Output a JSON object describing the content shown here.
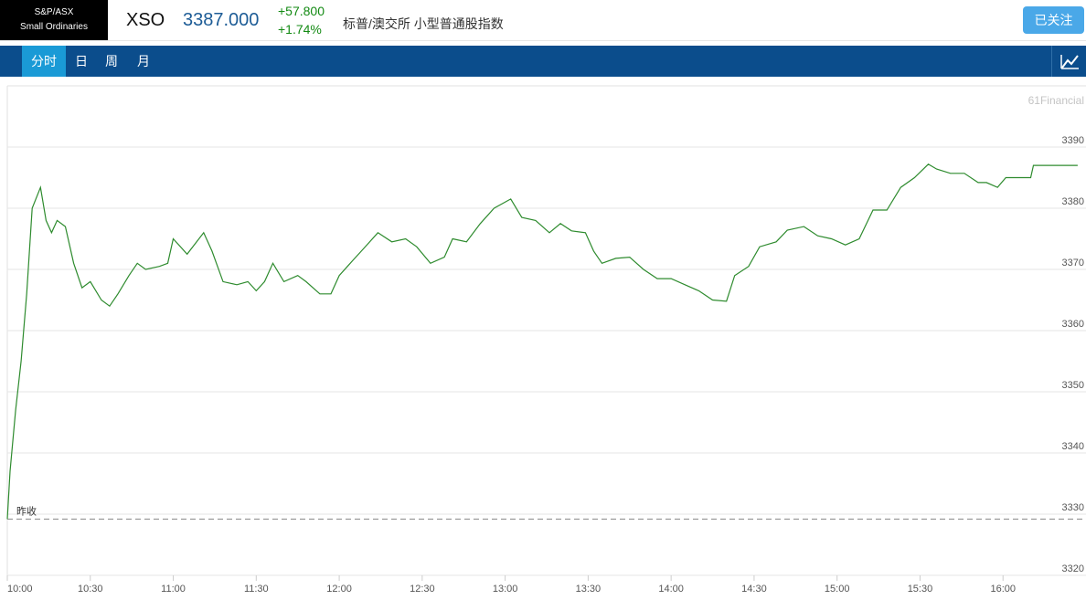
{
  "header": {
    "index_name": [
      "S&P/ASX",
      "Small Ordinaries"
    ],
    "symbol": "XSO",
    "price": "3387.000",
    "change": "+57.800",
    "change_pct": "+1.74%",
    "description": "标普/澳交所 小型普通股指数",
    "follow_button": "已关注"
  },
  "tabs": [
    "分时",
    "日",
    "周",
    "月"
  ],
  "chart_data": {
    "type": "line",
    "watermark": "61Financial",
    "prev_close_label": "昨收",
    "prev_close": 3329.2,
    "color": "#2e8b2e",
    "x": [
      "10:00",
      "10:01",
      "10:03",
      "10:05",
      "10:07",
      "10:09",
      "10:12",
      "10:14",
      "10:16",
      "10:18",
      "10:21",
      "10:24",
      "10:27",
      "10:30",
      "10:34",
      "10:37",
      "10:40",
      "10:44",
      "10:47",
      "10:50",
      "10:55",
      "10:58",
      "11:00",
      "11:05",
      "11:11",
      "11:14",
      "11:18",
      "11:23",
      "11:27",
      "11:30",
      "11:33",
      "11:36",
      "11:40",
      "11:45",
      "11:48",
      "11:53",
      "11:57",
      "12:00",
      "12:05",
      "12:09",
      "12:14",
      "12:19",
      "12:24",
      "12:28",
      "12:33",
      "12:38",
      "12:41",
      "12:46",
      "12:51",
      "12:56",
      "13:02",
      "13:06",
      "13:11",
      "13:16",
      "13:20",
      "13:24",
      "13:29",
      "13:32",
      "13:35",
      "13:40",
      "13:45",
      "13:50",
      "13:55",
      "14:00",
      "14:05",
      "14:10",
      "14:15",
      "14:20",
      "14:23",
      "14:28",
      "14:32",
      "14:38",
      "14:42",
      "14:48",
      "14:53",
      "14:58",
      "15:03",
      "15:08",
      "15:13",
      "15:18",
      "15:23",
      "15:28",
      "15:33",
      "15:36",
      "15:41",
      "15:46",
      "15:51",
      "15:54",
      "15:58",
      "16:01",
      "16:10",
      "16:11",
      "16:27"
    ],
    "values": [
      3329.2,
      3337,
      3347,
      3355,
      3366,
      3380,
      3383.4,
      3378,
      3376,
      3378,
      3377,
      3371,
      3367,
      3368,
      3365,
      3364,
      3366,
      3369,
      3371,
      3370,
      3370.5,
      3371,
      3375,
      3372.5,
      3376,
      3373,
      3368,
      3367.5,
      3368,
      3366.5,
      3368,
      3371,
      3368,
      3369,
      3368,
      3366,
      3366,
      3369,
      3371.5,
      3373.5,
      3376,
      3374.5,
      3375,
      3373.7,
      3371,
      3372,
      3375,
      3374.5,
      3377.5,
      3380,
      3381.5,
      3378.5,
      3378,
      3376,
      3377.5,
      3376.3,
      3376,
      3373,
      3371,
      3371.8,
      3372,
      3370,
      3368.5,
      3368.5,
      3367.5,
      3366.5,
      3365,
      3364.8,
      3369,
      3370.5,
      3373.7,
      3374.5,
      3376.4,
      3377,
      3375.5,
      3375,
      3374,
      3375,
      3379.7,
      3379.7,
      3383.4,
      3385,
      3387.2,
      3386.4,
      3385.7,
      3385.7,
      3384.2,
      3384.2,
      3383.4,
      3385,
      3385,
      3387,
      3387
    ],
    "xlim": [
      "10:00",
      "16:30"
    ],
    "xticks": [
      "10:00",
      "10:30",
      "11:00",
      "11:30",
      "12:00",
      "12:30",
      "13:00",
      "13:30",
      "14:00",
      "14:30",
      "15:00",
      "15:30",
      "16:00"
    ],
    "ylim": [
      3320,
      3400
    ],
    "yticks": [
      3320,
      3330,
      3340,
      3350,
      3360,
      3370,
      3380,
      3390
    ],
    "grid": true
  }
}
